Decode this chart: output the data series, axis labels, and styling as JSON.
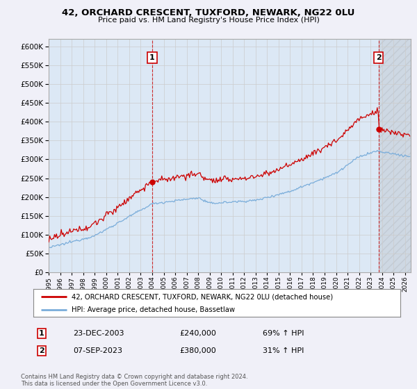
{
  "title_line1": "42, ORCHARD CRESCENT, TUXFORD, NEWARK, NG22 0LU",
  "title_line2": "Price paid vs. HM Land Registry's House Price Index (HPI)",
  "ytick_values": [
    0,
    50000,
    100000,
    150000,
    200000,
    250000,
    300000,
    350000,
    400000,
    450000,
    500000,
    550000,
    600000
  ],
  "xlim_start": 1995.0,
  "xlim_end": 2026.5,
  "ylim_min": 0,
  "ylim_max": 620000,
  "grid_color": "#cccccc",
  "bg_color": "#f0f0f8",
  "plot_bg_color": "#dce8f5",
  "red_line_color": "#cc0000",
  "blue_line_color": "#7aadda",
  "legend_red_label": "42, ORCHARD CRESCENT, TUXFORD, NEWARK, NG22 0LU (detached house)",
  "legend_blue_label": "HPI: Average price, detached house, Bassetlaw",
  "table_row1": [
    "1",
    "23-DEC-2003",
    "£240,000",
    "69% ↑ HPI"
  ],
  "table_row2": [
    "2",
    "07-SEP-2023",
    "£380,000",
    "31% ↑ HPI"
  ],
  "footnote": "Contains HM Land Registry data © Crown copyright and database right 2024.\nThis data is licensed under the Open Government Licence v3.0.",
  "sale1_year": 2004.0,
  "sale1_price": 240000,
  "sale2_year": 2023.69,
  "sale2_price": 380000
}
